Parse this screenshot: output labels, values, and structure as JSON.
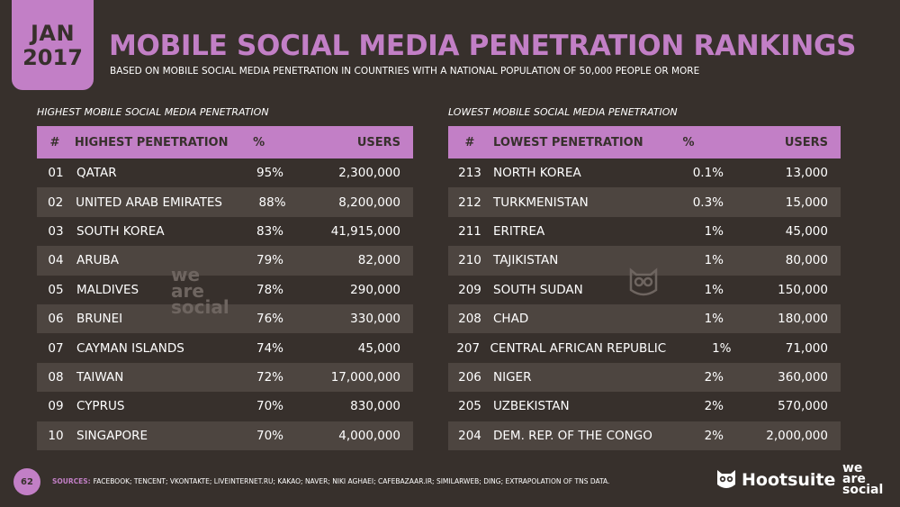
{
  "header": {
    "date_month": "JAN",
    "date_year": "2017",
    "title": "MOBILE SOCIAL MEDIA PENETRATION RANKINGS",
    "subtitle": "BASED ON MOBILE SOCIAL MEDIA PENETRATION IN COUNTRIES WITH A NATIONAL POPULATION OF 50,000 PEOPLE OR MORE"
  },
  "left_table": {
    "label": "HIGHEST MOBILE SOCIAL MEDIA PENETRATION",
    "headers": [
      "#",
      "HIGHEST PENETRATION",
      "%",
      "USERS"
    ],
    "rows": [
      {
        "rank": "01",
        "name": "QATAR",
        "pct": "95%",
        "users": "2,300,000"
      },
      {
        "rank": "02",
        "name": "UNITED ARAB EMIRATES",
        "pct": "88%",
        "users": "8,200,000"
      },
      {
        "rank": "03",
        "name": "SOUTH KOREA",
        "pct": "83%",
        "users": "41,915,000"
      },
      {
        "rank": "04",
        "name": "ARUBA",
        "pct": "79%",
        "users": "82,000"
      },
      {
        "rank": "05",
        "name": "MALDIVES",
        "pct": "78%",
        "users": "290,000"
      },
      {
        "rank": "06",
        "name": "BRUNEI",
        "pct": "76%",
        "users": "330,000"
      },
      {
        "rank": "07",
        "name": "CAYMAN ISLANDS",
        "pct": "74%",
        "users": "45,000"
      },
      {
        "rank": "08",
        "name": "TAIWAN",
        "pct": "72%",
        "users": "17,000,000"
      },
      {
        "rank": "09",
        "name": "CYPRUS",
        "pct": "70%",
        "users": "830,000"
      },
      {
        "rank": "10",
        "name": "SINGAPORE",
        "pct": "70%",
        "users": "4,000,000"
      }
    ]
  },
  "right_table": {
    "label": "LOWEST MOBILE SOCIAL MEDIA PENETRATION",
    "headers": [
      "#",
      "LOWEST PENETRATION",
      "%",
      "USERS"
    ],
    "rows": [
      {
        "rank": "213",
        "name": "NORTH KOREA",
        "pct": "0.1%",
        "users": "13,000"
      },
      {
        "rank": "212",
        "name": "TURKMENISTAN",
        "pct": "0.3%",
        "users": "15,000"
      },
      {
        "rank": "211",
        "name": "ERITREA",
        "pct": "1%",
        "users": "45,000"
      },
      {
        "rank": "210",
        "name": "TAJIKISTAN",
        "pct": "1%",
        "users": "80,000"
      },
      {
        "rank": "209",
        "name": "SOUTH SUDAN",
        "pct": "1%",
        "users": "150,000"
      },
      {
        "rank": "208",
        "name": "CHAD",
        "pct": "1%",
        "users": "180,000"
      },
      {
        "rank": "207",
        "name": "CENTRAL AFRICAN REPUBLIC",
        "pct": "1%",
        "users": "71,000"
      },
      {
        "rank": "206",
        "name": "NIGER",
        "pct": "2%",
        "users": "360,000"
      },
      {
        "rank": "205",
        "name": "UZBEKISTAN",
        "pct": "2%",
        "users": "570,000"
      },
      {
        "rank": "204",
        "name": "DEM. REP. OF THE CONGO",
        "pct": "2%",
        "users": "2,000,000"
      }
    ]
  },
  "footer": {
    "page_number": "62",
    "sources_label": "SOURCES:",
    "sources_text": "FACEBOOK; TENCENT; VKONTAKTE; LIVEINTERNET.RU; KAKAO; NAVER; NIKI AGHAEI; CAFEBAZAAR.IR; SIMILARWEB; DING; EXTRAPOLATION OF TNS DATA.",
    "hootsuite_logo": "Hootsuite",
    "was_line1": "we",
    "was_line2": "are",
    "was_line3": "social"
  },
  "watermark": {
    "line1": "we",
    "line2": "are",
    "line3": "social"
  },
  "colors": {
    "accent": "#c27fc6",
    "background": "#37302c",
    "stripe": "#4d4540"
  },
  "icons": {
    "watermark_left": "we-are-social-watermark",
    "watermark_right": "owl-watermark-icon",
    "hootsuite": "owl-icon"
  }
}
